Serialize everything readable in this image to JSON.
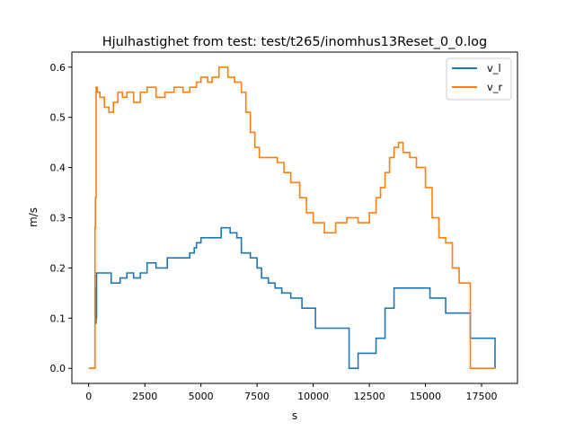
{
  "chart_data": {
    "type": "line",
    "title": "Hjulhastighet from test: test/t265/inomhus13Reset_0_0.log",
    "xlabel": "s",
    "ylabel": "m/s",
    "xlim": [
      -750,
      19100
    ],
    "ylim": [
      -0.03,
      0.63
    ],
    "xticks": [
      0,
      2500,
      5000,
      7500,
      10000,
      12500,
      15000,
      17500
    ],
    "xtick_labels": [
      "0",
      "2500",
      "5000",
      "7500",
      "10000",
      "12500",
      "15000",
      "17500"
    ],
    "yticks": [
      0.0,
      0.1,
      0.2,
      0.3,
      0.4,
      0.5,
      0.6
    ],
    "ytick_labels": [
      "0.0",
      "0.1",
      "0.2",
      "0.3",
      "0.4",
      "0.5",
      "0.6"
    ],
    "grid": false,
    "legend_position": "top-right",
    "series": [
      {
        "name": "v_l",
        "color": "#1f77b4",
        "x": [
          0,
          250,
          280,
          300,
          330,
          350,
          1000,
          1400,
          1700,
          2000,
          2300,
          2600,
          3000,
          3500,
          4100,
          4500,
          4700,
          4800,
          5000,
          5900,
          6300,
          6600,
          6800,
          7200,
          7500,
          7700,
          8000,
          8300,
          8600,
          9000,
          9500,
          10100,
          11000,
          11500,
          11600,
          12000,
          12500,
          12800,
          13200,
          13600,
          14000,
          15200,
          15900,
          17000,
          18000,
          18100
        ],
        "y": [
          0.0,
          0.0,
          0.16,
          0.09,
          0.1,
          0.19,
          0.17,
          0.18,
          0.19,
          0.18,
          0.19,
          0.21,
          0.2,
          0.22,
          0.22,
          0.23,
          0.24,
          0.25,
          0.26,
          0.28,
          0.27,
          0.26,
          0.23,
          0.22,
          0.2,
          0.18,
          0.17,
          0.16,
          0.15,
          0.14,
          0.12,
          0.08,
          0.08,
          0.08,
          0.0,
          0.03,
          0.03,
          0.06,
          0.12,
          0.16,
          0.16,
          0.14,
          0.11,
          0.06,
          0.06,
          0.0
        ]
      },
      {
        "name": "v_r",
        "color": "#ff7f0e",
        "x": [
          0,
          250,
          280,
          300,
          330,
          380,
          500,
          700,
          900,
          1100,
          1300,
          1500,
          1700,
          2000,
          2300,
          2600,
          3000,
          3400,
          3800,
          4200,
          4500,
          4800,
          5000,
          5300,
          5500,
          5800,
          6200,
          6500,
          6800,
          7000,
          7200,
          7400,
          7600,
          8000,
          8400,
          8700,
          9000,
          9400,
          9700,
          10000,
          10500,
          11000,
          11500,
          12000,
          12500,
          12800,
          13000,
          13200,
          13400,
          13600,
          13800,
          14000,
          14300,
          14600,
          15000,
          15300,
          15600,
          15900,
          16200,
          16500,
          17000,
          17100,
          18100
        ],
        "y": [
          0.0,
          0.0,
          0.28,
          0.34,
          0.56,
          0.55,
          0.54,
          0.52,
          0.51,
          0.53,
          0.55,
          0.54,
          0.55,
          0.53,
          0.55,
          0.56,
          0.54,
          0.55,
          0.56,
          0.55,
          0.56,
          0.57,
          0.58,
          0.57,
          0.58,
          0.6,
          0.58,
          0.57,
          0.55,
          0.51,
          0.47,
          0.44,
          0.42,
          0.42,
          0.41,
          0.39,
          0.37,
          0.34,
          0.31,
          0.29,
          0.27,
          0.29,
          0.3,
          0.29,
          0.31,
          0.34,
          0.36,
          0.39,
          0.42,
          0.44,
          0.45,
          0.43,
          0.42,
          0.4,
          0.36,
          0.3,
          0.26,
          0.25,
          0.2,
          0.17,
          0.0,
          0.0,
          0.0
        ]
      }
    ]
  }
}
